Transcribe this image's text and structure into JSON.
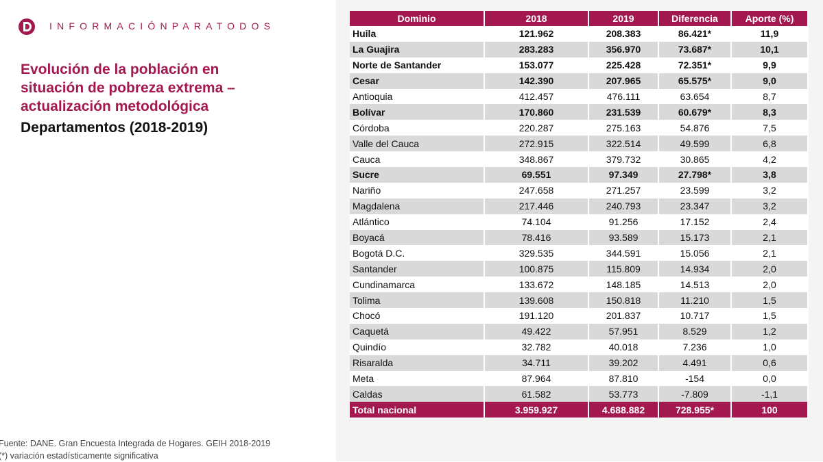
{
  "header": {
    "brand": "INFORMACIÓNPARATODOS"
  },
  "title_lines": [
    "Evolución de la población en",
    "situación de pobreza extrema –",
    "actualización metodológica"
  ],
  "subtitle": "Departamentos (2018-2019)",
  "table": {
    "columns": [
      "Dominio",
      "2018",
      "2019",
      "Diferencia",
      "Aporte (%)"
    ],
    "rows": [
      [
        "Huila",
        "121.962",
        "208.383",
        "86.421*",
        "11,9"
      ],
      [
        "La Guajira",
        "283.283",
        "356.970",
        "73.687*",
        "10,1"
      ],
      [
        "Norte de Santander",
        "153.077",
        "225.428",
        "72.351*",
        "9,9"
      ],
      [
        "Cesar",
        "142.390",
        "207.965",
        "65.575*",
        "9,0"
      ],
      [
        "Antioquia",
        "412.457",
        "476.111",
        "63.654",
        "8,7"
      ],
      [
        "Bolívar",
        "170.860",
        "231.539",
        "60.679*",
        "8,3"
      ],
      [
        "Córdoba",
        "220.287",
        "275.163",
        "54.876",
        "7,5"
      ],
      [
        "Valle del Cauca",
        "272.915",
        "322.514",
        "49.599",
        "6,8"
      ],
      [
        "Cauca",
        "348.867",
        "379.732",
        "30.865",
        "4,2"
      ],
      [
        "Sucre",
        "69.551",
        "97.349",
        "27.798*",
        "3,8"
      ],
      [
        "Nariño",
        "247.658",
        "271.257",
        "23.599",
        "3,2"
      ],
      [
        "Magdalena",
        "217.446",
        "240.793",
        "23.347",
        "3,2"
      ],
      [
        "Atlántico",
        "74.104",
        "91.256",
        "17.152",
        "2,4"
      ],
      [
        "Boyacá",
        "78.416",
        "93.589",
        "15.173",
        "2,1"
      ],
      [
        "Bogotá D.C.",
        "329.535",
        "344.591",
        "15.056",
        "2,1"
      ],
      [
        "Santander",
        "100.875",
        "115.809",
        "14.934",
        "2,0"
      ],
      [
        "Cundinamarca",
        "133.672",
        "148.185",
        "14.513",
        "2,0"
      ],
      [
        "Tolima",
        "139.608",
        "150.818",
        "11.210",
        "1,5"
      ],
      [
        "Chocó",
        "191.120",
        "201.837",
        "10.717",
        "1,5"
      ],
      [
        "Caquetá",
        "49.422",
        "57.951",
        "8.529",
        "1,2"
      ],
      [
        "Quindío",
        "32.782",
        "40.018",
        "7.236",
        "1,0"
      ],
      [
        "Risaralda",
        "34.711",
        "39.202",
        "4.491",
        "0,6"
      ],
      [
        "Meta",
        "87.964",
        "87.810",
        "-154",
        "0,0"
      ],
      [
        "Caldas",
        "61.582",
        "53.773",
        "-7.809",
        "-1,1"
      ]
    ],
    "total": [
      "Total nacional",
      "3.959.927",
      "4.688.882",
      "728.955*",
      "100"
    ]
  },
  "footnotes": [
    "Fuente: DANE. Gran Encuesta Integrada de Hogares. GEIH 2018-2019",
    "(*) variación estadísticamente significativa"
  ]
}
